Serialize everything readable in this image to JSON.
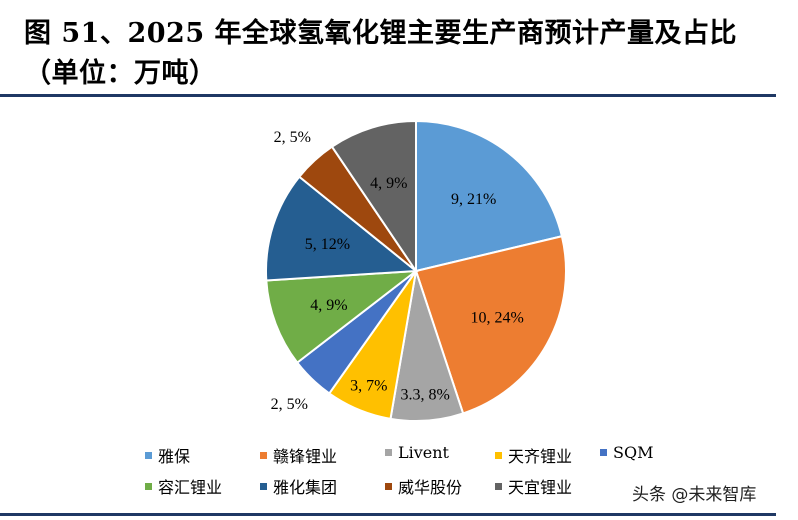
{
  "title": "图 51、2025 年全球氢氧化锂主要生产商预计产量及占比（单位：万吨）",
  "watermark": "头条 @未来智库",
  "chart_data": {
    "type": "pie",
    "title": "图 51、2025 年全球氢氧化锂主要生产商预计产量及占比（单位：万吨）",
    "start": "top",
    "direction": "clockwise",
    "legend_position": "bottom",
    "slices": [
      {
        "name": "雅保",
        "value": 9,
        "percent": 21,
        "label": "9, 21%",
        "color": "#5b9bd5"
      },
      {
        "name": "赣锋锂业",
        "value": 10,
        "percent": 24,
        "label": "10, 24%",
        "color": "#ed7d31"
      },
      {
        "name": "Livent",
        "value": 3.3,
        "percent": 8,
        "label": "3.3, 8%",
        "color": "#a5a5a5"
      },
      {
        "name": "天齐锂业",
        "value": 3,
        "percent": 7,
        "label": "3, 7%",
        "color": "#ffc000"
      },
      {
        "name": "SQM",
        "value": 2,
        "percent": 5,
        "label": "2, 5%",
        "color": "#4472c4"
      },
      {
        "name": "容汇锂业",
        "value": 4,
        "percent": 9,
        "label": "4, 9%",
        "color": "#70ad47"
      },
      {
        "name": "雅化集团",
        "value": 5,
        "percent": 12,
        "label": "5, 12%",
        "color": "#255e91"
      },
      {
        "name": "威华股份",
        "value": 2,
        "percent": 5,
        "label": "2, 5%",
        "color": "#9e480e"
      },
      {
        "name": "天宜锂业",
        "value": 4,
        "percent": 9,
        "label": "4, 9%",
        "color": "#636363"
      }
    ]
  }
}
